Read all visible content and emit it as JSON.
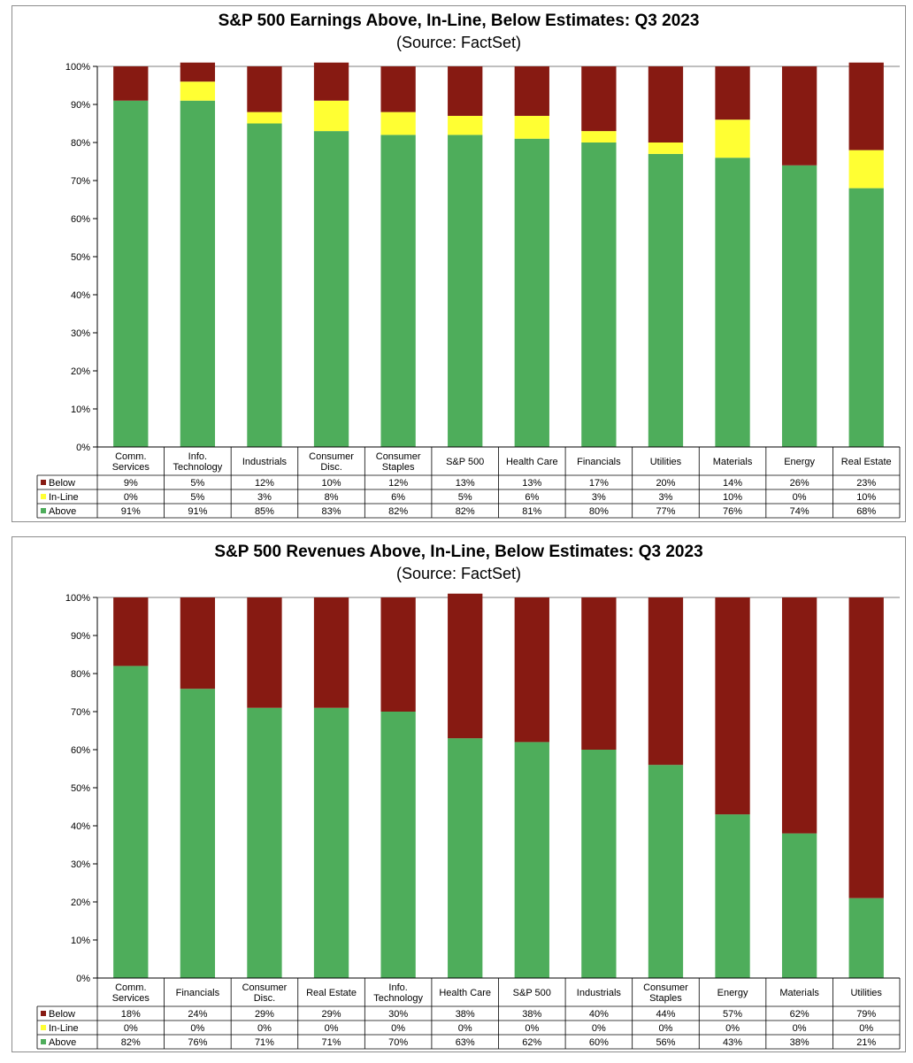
{
  "colors": {
    "below": "#871a12",
    "inline": "#ffff33",
    "above": "#4ead5b",
    "grid": "#000000"
  },
  "chart_data": [
    {
      "type": "bar",
      "stacked": true,
      "title": "S&P 500 Earnings Above, In-Line, Below Estimates: Q3 2023",
      "subtitle": "(Source: FactSet)",
      "ylim": [
        0,
        100
      ],
      "y_ticks": [
        "0%",
        "10%",
        "20%",
        "30%",
        "40%",
        "50%",
        "60%",
        "70%",
        "80%",
        "90%",
        "100%"
      ],
      "grid": false,
      "legend": "data-table-left",
      "categories": [
        [
          "Comm.",
          "Services"
        ],
        [
          "Info.",
          "Technology"
        ],
        [
          "Industrials"
        ],
        [
          "Consumer",
          "Disc."
        ],
        [
          "Consumer",
          "Staples"
        ],
        [
          "S&P 500"
        ],
        [
          "Health Care"
        ],
        [
          "Financials"
        ],
        [
          "Utilities"
        ],
        [
          "Materials"
        ],
        [
          "Energy"
        ],
        [
          "Real Estate"
        ]
      ],
      "series": [
        {
          "name": "Below",
          "key": "below",
          "values": [
            9,
            5,
            12,
            10,
            12,
            13,
            13,
            17,
            20,
            14,
            26,
            23
          ],
          "labels": [
            "9%",
            "5%",
            "12%",
            "10%",
            "12%",
            "13%",
            "13%",
            "17%",
            "20%",
            "14%",
            "26%",
            "23%"
          ]
        },
        {
          "name": "In-Line",
          "key": "inline",
          "values": [
            0,
            5,
            3,
            8,
            6,
            5,
            6,
            3,
            3,
            10,
            0,
            10
          ],
          "labels": [
            "0%",
            "5%",
            "3%",
            "8%",
            "6%",
            "5%",
            "6%",
            "3%",
            "3%",
            "10%",
            "0%",
            "10%"
          ]
        },
        {
          "name": "Above",
          "key": "above",
          "values": [
            91,
            91,
            85,
            83,
            82,
            82,
            81,
            80,
            77,
            76,
            74,
            68
          ],
          "labels": [
            "91%",
            "91%",
            "85%",
            "83%",
            "82%",
            "82%",
            "81%",
            "80%",
            "77%",
            "76%",
            "74%",
            "68%"
          ]
        }
      ]
    },
    {
      "type": "bar",
      "stacked": true,
      "title": "S&P 500 Revenues Above, In-Line, Below Estimates: Q3 2023",
      "subtitle": "(Source: FactSet)",
      "ylim": [
        0,
        100
      ],
      "y_ticks": [
        "0%",
        "10%",
        "20%",
        "30%",
        "40%",
        "50%",
        "60%",
        "70%",
        "80%",
        "90%",
        "100%"
      ],
      "grid": false,
      "legend": "data-table-left",
      "categories": [
        [
          "Comm.",
          "Services"
        ],
        [
          "Financials"
        ],
        [
          "Consumer",
          "Disc."
        ],
        [
          "Real Estate"
        ],
        [
          "Info.",
          "Technology"
        ],
        [
          "Health Care"
        ],
        [
          "S&P 500"
        ],
        [
          "Industrials"
        ],
        [
          "Consumer",
          "Staples"
        ],
        [
          "Energy"
        ],
        [
          "Materials"
        ],
        [
          "Utilities"
        ]
      ],
      "series": [
        {
          "name": "Below",
          "key": "below",
          "values": [
            18,
            24,
            29,
            29,
            30,
            38,
            38,
            40,
            44,
            57,
            62,
            79
          ],
          "labels": [
            "18%",
            "24%",
            "29%",
            "29%",
            "30%",
            "38%",
            "38%",
            "40%",
            "44%",
            "57%",
            "62%",
            "79%"
          ]
        },
        {
          "name": "In-Line",
          "key": "inline",
          "values": [
            0,
            0,
            0,
            0,
            0,
            0,
            0,
            0,
            0,
            0,
            0,
            0
          ],
          "labels": [
            "0%",
            "0%",
            "0%",
            "0%",
            "0%",
            "0%",
            "0%",
            "0%",
            "0%",
            "0%",
            "0%",
            "0%"
          ]
        },
        {
          "name": "Above",
          "key": "above",
          "values": [
            82,
            76,
            71,
            71,
            70,
            63,
            62,
            60,
            56,
            43,
            38,
            21
          ],
          "labels": [
            "82%",
            "76%",
            "71%",
            "71%",
            "70%",
            "63%",
            "62%",
            "60%",
            "56%",
            "43%",
            "38%",
            "21%"
          ]
        }
      ]
    }
  ]
}
